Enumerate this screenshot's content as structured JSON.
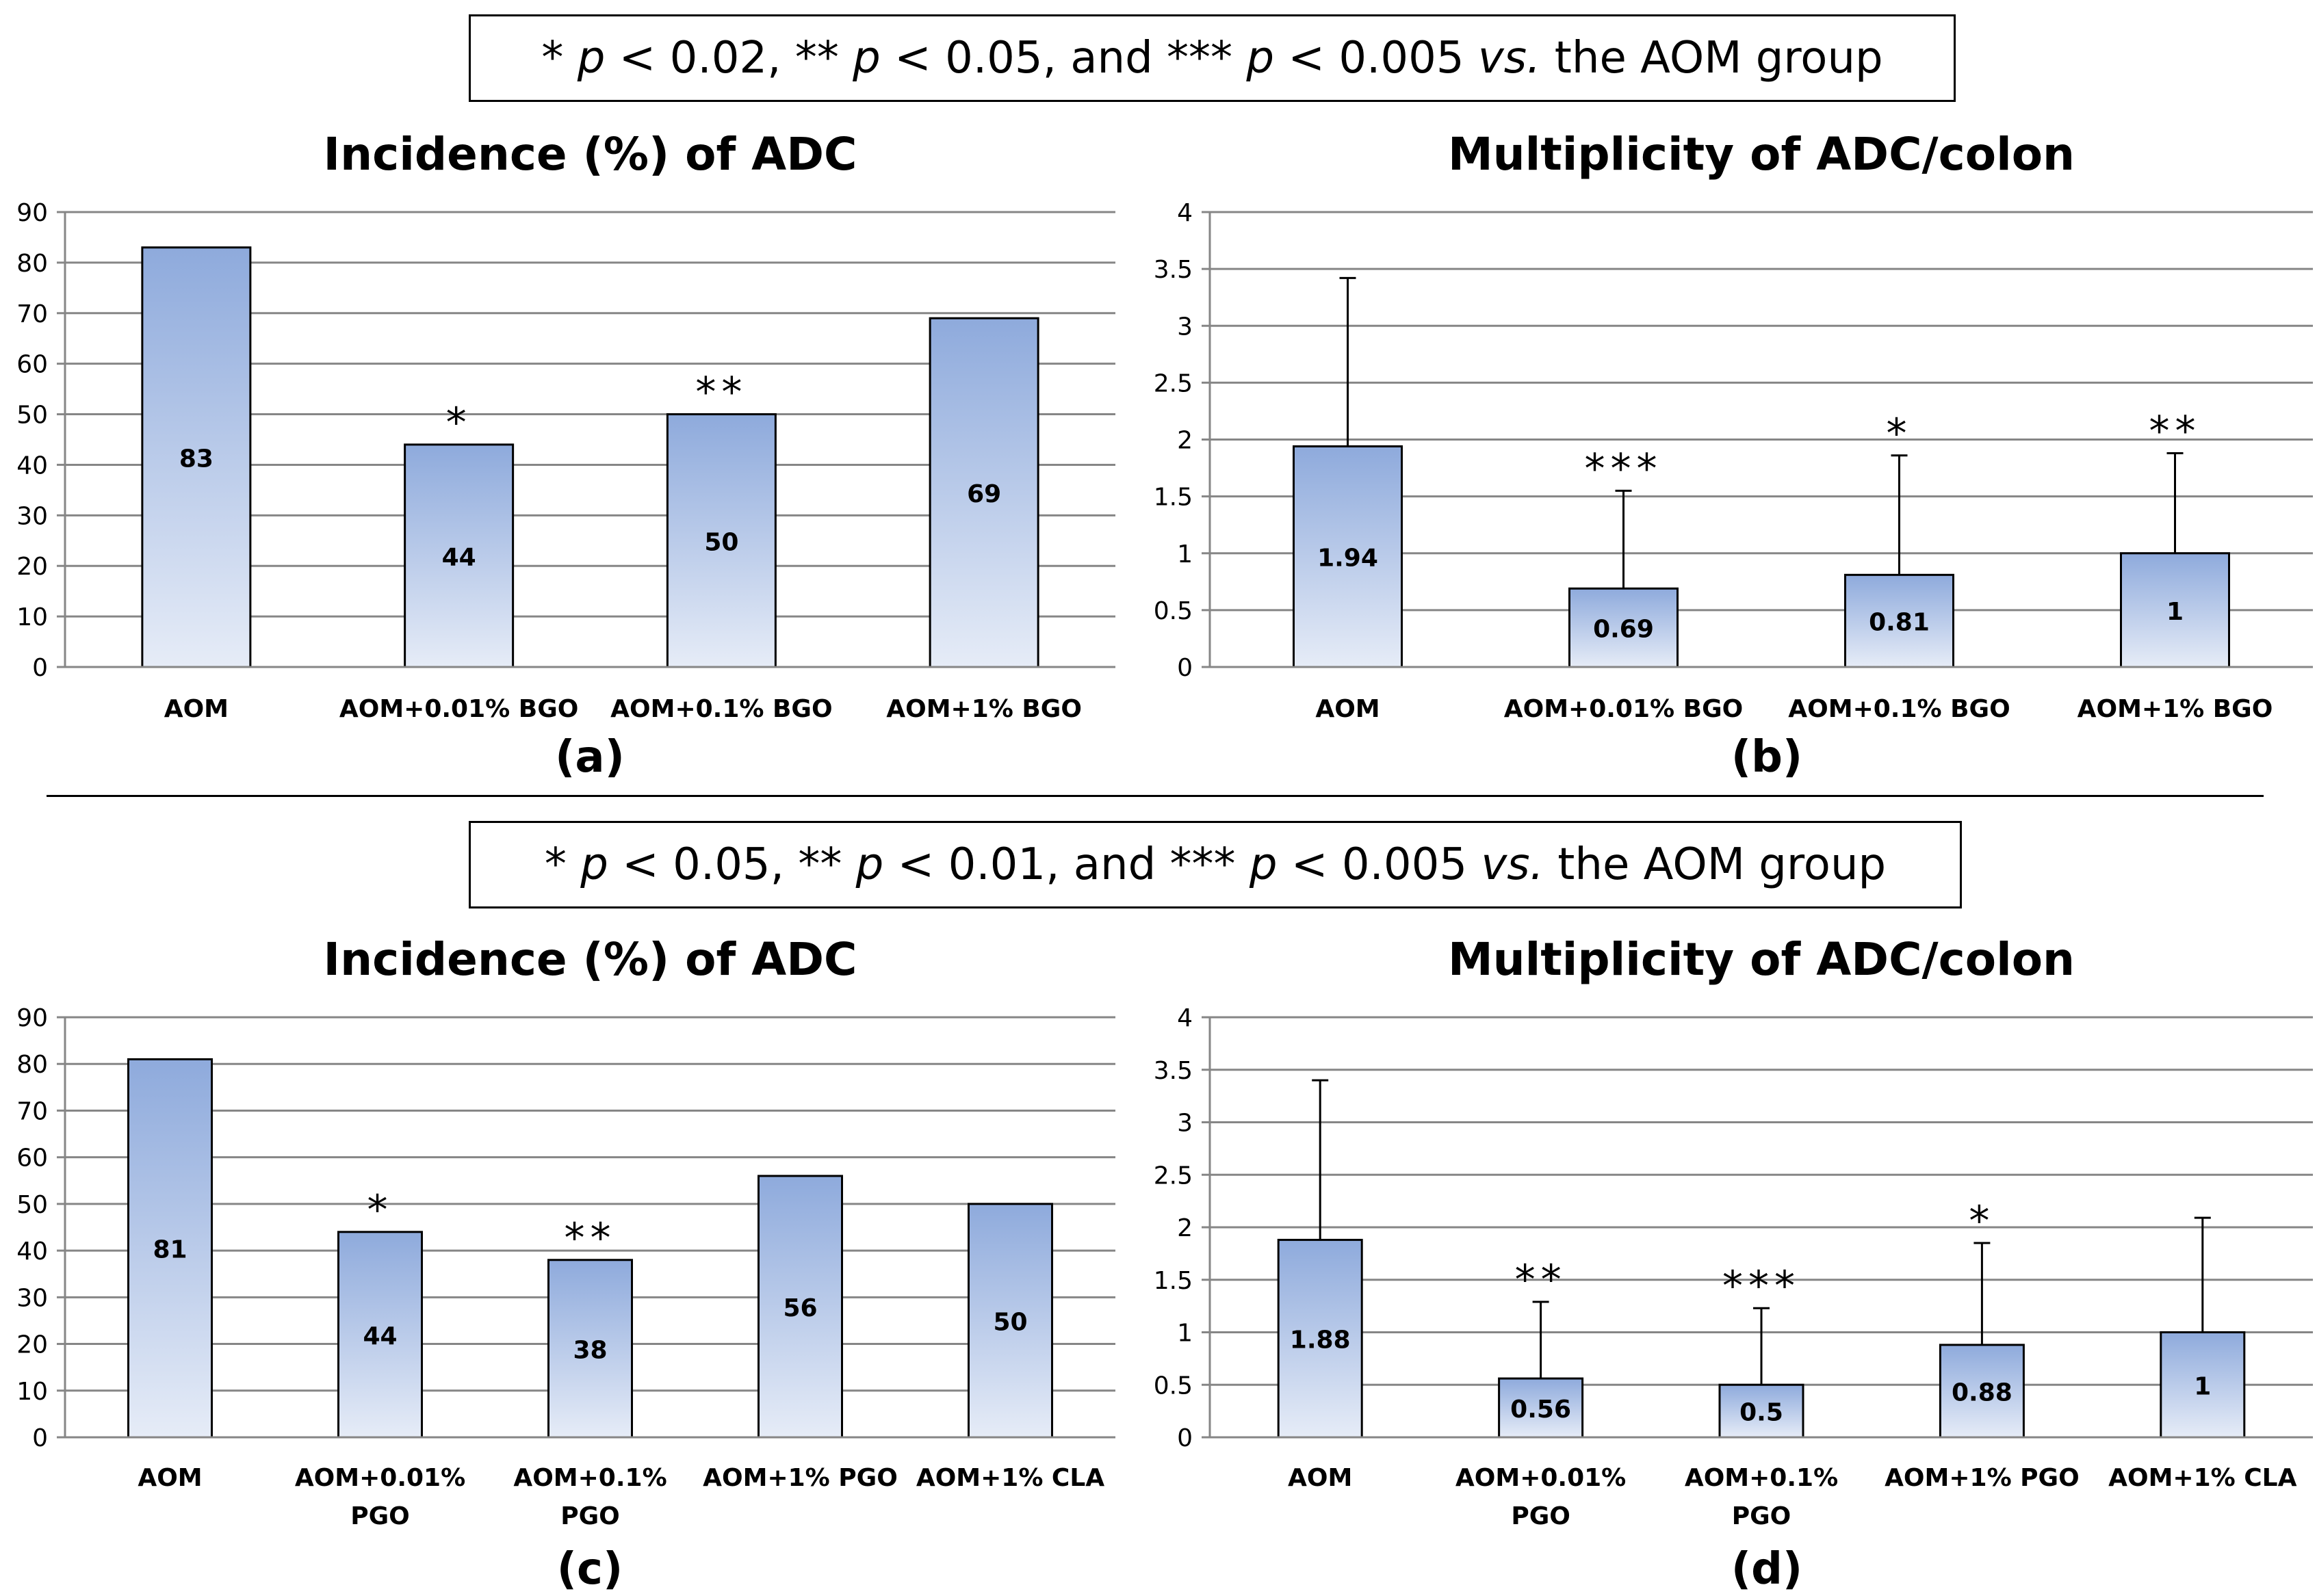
{
  "legends": {
    "top": {
      "s1": "*",
      "p1": "p",
      "t1": " < 0.02, ** ",
      "p2": "p",
      "t2": " < 0.05, and *** ",
      "p3": "p",
      "t3": " < 0.005 ",
      "vs": "vs.",
      "t4": " the AOM group"
    },
    "bottom": {
      "s1": "*",
      "p1": "p",
      "t1": " < 0.05, ** ",
      "p2": "p",
      "t2": " < 0.01, and *** ",
      "p3": "p",
      "t3": " < 0.005 ",
      "vs": "vs.",
      "t4": " the AOM group"
    }
  },
  "chart_data": [
    {
      "id": "a",
      "type": "bar",
      "panel_label": "(a)",
      "title": "Incidence (%) of ADC",
      "categories": [
        [
          "AOM"
        ],
        [
          "AOM+0.01% BGO"
        ],
        [
          "AOM+0.1% BGO"
        ],
        [
          "AOM+1% BGO"
        ]
      ],
      "values": [
        83,
        44,
        50,
        69
      ],
      "value_labels": [
        "83",
        "44",
        "50",
        "69"
      ],
      "significance": [
        "",
        "*",
        "**",
        ""
      ],
      "error_upper": null,
      "ylim": [
        0,
        90
      ],
      "yticks": [
        0,
        10,
        20,
        30,
        40,
        50,
        60,
        70,
        80,
        90
      ],
      "ytick_labels": [
        "0",
        "10",
        "20",
        "30",
        "40",
        "50",
        "60",
        "70",
        "80",
        "90"
      ],
      "grid": true
    },
    {
      "id": "b",
      "type": "bar",
      "panel_label": "(b)",
      "title": "Multiplicity of ADC/colon",
      "categories": [
        [
          "AOM"
        ],
        [
          "AOM+0.01% BGO"
        ],
        [
          "AOM+0.1% BGO"
        ],
        [
          "AOM+1% BGO"
        ]
      ],
      "values": [
        1.94,
        0.69,
        0.81,
        1
      ],
      "value_labels": [
        "1.94",
        "0.69",
        "0.81",
        "1"
      ],
      "significance": [
        "",
        "***",
        "*",
        "**"
      ],
      "error_upper": [
        3.42,
        1.55,
        1.86,
        1.88
      ],
      "ylim": [
        0,
        4
      ],
      "yticks": [
        0,
        0.5,
        1,
        1.5,
        2,
        2.5,
        3,
        3.5,
        4
      ],
      "ytick_labels": [
        "0",
        "0.5",
        "1",
        "1.5",
        "2",
        "2.5",
        "3",
        "3.5",
        "4"
      ],
      "grid": true
    },
    {
      "id": "c",
      "type": "bar",
      "panel_label": "(c)",
      "title": "Incidence (%) of ADC",
      "categories": [
        [
          "AOM"
        ],
        [
          "AOM+0.01%",
          "PGO"
        ],
        [
          "AOM+0.1%",
          "PGO"
        ],
        [
          "AOM+1% PGO"
        ],
        [
          "AOM+1% CLA"
        ]
      ],
      "values": [
        81,
        44,
        38,
        56,
        50
      ],
      "value_labels": [
        "81",
        "44",
        "38",
        "56",
        "50"
      ],
      "significance": [
        "",
        "*",
        "**",
        "",
        ""
      ],
      "error_upper": null,
      "ylim": [
        0,
        90
      ],
      "yticks": [
        0,
        10,
        20,
        30,
        40,
        50,
        60,
        70,
        80,
        90
      ],
      "ytick_labels": [
        "0",
        "10",
        "20",
        "30",
        "40",
        "50",
        "60",
        "70",
        "80",
        "90"
      ],
      "grid": true
    },
    {
      "id": "d",
      "type": "bar",
      "panel_label": "(d)",
      "title": "Multiplicity of ADC/colon",
      "categories": [
        [
          "AOM"
        ],
        [
          "AOM+0.01%",
          "PGO"
        ],
        [
          "AOM+0.1%",
          "PGO"
        ],
        [
          "AOM+1% PGO"
        ],
        [
          "AOM+1% CLA"
        ]
      ],
      "values": [
        1.88,
        0.56,
        0.5,
        0.88,
        1
      ],
      "value_labels": [
        "1.88",
        "0.56",
        "0.5",
        "0.88",
        "1"
      ],
      "significance": [
        "",
        "**",
        "***",
        "*",
        ""
      ],
      "error_upper": [
        3.4,
        1.29,
        1.23,
        1.85,
        2.09
      ],
      "ylim": [
        0,
        4
      ],
      "yticks": [
        0,
        0.5,
        1,
        1.5,
        2,
        2.5,
        3,
        3.5,
        4
      ],
      "ytick_labels": [
        "0",
        "0.5",
        "1",
        "1.5",
        "2",
        "2.5",
        "3",
        "3.5",
        "4"
      ],
      "grid": true
    }
  ]
}
